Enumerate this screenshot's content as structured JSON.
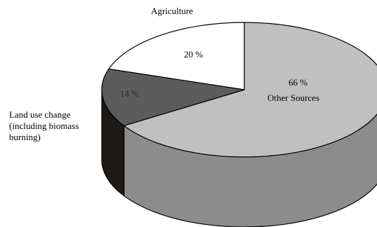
{
  "chart_data": {
    "type": "pie",
    "style": "3d",
    "slices": [
      {
        "label": "Other Sources",
        "value": 66,
        "percent_text": "66 %",
        "name_text": "Other Sources",
        "color": "#c0c0c0",
        "side_color": "#8c8c8c"
      },
      {
        "label": "Land use change (including biomass burning)",
        "value": 14,
        "percent_text": "14 %",
        "name_lines": [
          "Land use change",
          "(including biomass",
          "burning)"
        ],
        "color": "#5c5c5c",
        "side_color": "#1e1a17"
      },
      {
        "label": "Agriculture",
        "value": 20,
        "percent_text": "20 %",
        "name_text": "Agriculture",
        "color": "#ffffff",
        "side_color": "#ffffff"
      }
    ],
    "title": "",
    "legend": "none"
  }
}
